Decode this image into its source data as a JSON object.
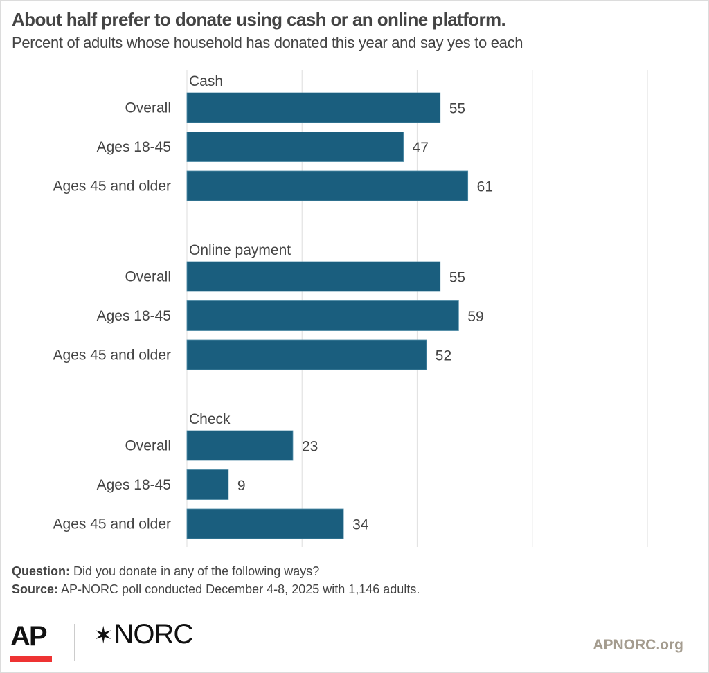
{
  "header": {
    "title": "About half prefer to donate using cash or an online platform.",
    "subtitle": "Percent of adults whose household has donated this year and say yes to each"
  },
  "chart_data": {
    "type": "bar",
    "orientation": "horizontal",
    "title": "About half prefer to donate using cash or an online platform.",
    "subtitle": "Percent of adults whose household has donated this year and say yes to each",
    "xlabel": "%",
    "ylabel": "",
    "xlim": [
      0,
      100
    ],
    "ticks": [
      0,
      25,
      50,
      75,
      100
    ],
    "tick_labels": [
      "0",
      "25",
      "50",
      "75",
      "100"
    ],
    "unit_label": "%",
    "grid": true,
    "bar_color": "#1a5e7e",
    "groups": [
      {
        "name": "Cash",
        "categories": [
          "Overall",
          "Ages 18-45",
          "Ages 45 and older"
        ],
        "values": [
          55,
          47,
          61
        ]
      },
      {
        "name": "Online payment",
        "categories": [
          "Overall",
          "Ages 18-45",
          "Ages 45 and older"
        ],
        "values": [
          55,
          59,
          52
        ]
      },
      {
        "name": "Check",
        "categories": [
          "Overall",
          "Ages 18-45",
          "Ages 45 and older"
        ],
        "values": [
          23,
          9,
          34
        ]
      }
    ]
  },
  "footer": {
    "question_label": "Question:",
    "question_text": "Did you donate in any of the following ways?",
    "source_label": "Source:",
    "source_text": "AP-NORC poll conducted December 4-8, 2025 with 1,146 adults.",
    "logo_ap": "AP",
    "logo_norc_star": "✶",
    "logo_norc": "NORC",
    "site": "APNORC.org"
  }
}
